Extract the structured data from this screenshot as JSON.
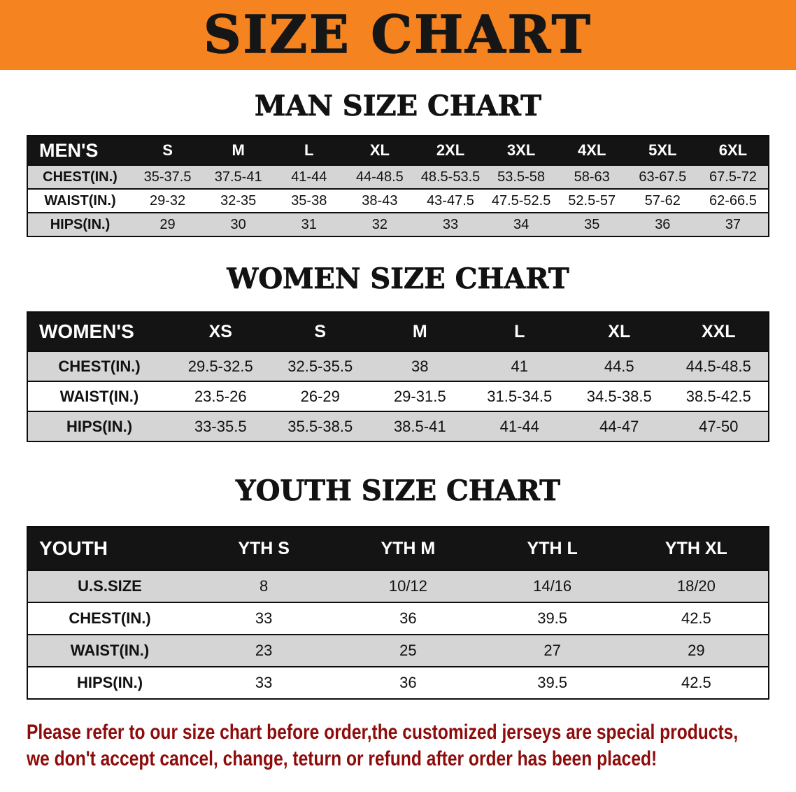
{
  "banner": {
    "title": "SIZE CHART"
  },
  "colors": {
    "banner_bg": "#f5831f",
    "header_row_bg": "#141414",
    "stripe_row_bg": "#d5d5d5",
    "border": "#0d0d0d",
    "notice_text": "#8e0b0b"
  },
  "sections": [
    {
      "heading": "MAN SIZE CHART",
      "table": {
        "header": [
          "MEN'S",
          "S",
          "M",
          "L",
          "XL",
          "2XL",
          "3XL",
          "4XL",
          "5XL",
          "6XL"
        ],
        "rows": [
          [
            "CHEST(IN.)",
            "35-37.5",
            "37.5-41",
            "41-44",
            "44-48.5",
            "48.5-53.5",
            "53.5-58",
            "58-63",
            "63-67.5",
            "67.5-72"
          ],
          [
            "WAIST(IN.)",
            "29-32",
            "32-35",
            "35-38",
            "38-43",
            "43-47.5",
            "47.5-52.5",
            "52.5-57",
            "57-62",
            "62-66.5"
          ],
          [
            "HIPS(IN.)",
            "29",
            "30",
            "31",
            "32",
            "33",
            "34",
            "35",
            "36",
            "37"
          ]
        ]
      }
    },
    {
      "heading": "WOMEN SIZE CHART",
      "table": {
        "header": [
          "WOMEN'S",
          "XS",
          "S",
          "M",
          "L",
          "XL",
          "XXL"
        ],
        "rows": [
          [
            "CHEST(IN.)",
            "29.5-32.5",
            "32.5-35.5",
            "38",
            "41",
            "44.5",
            "44.5-48.5"
          ],
          [
            "WAIST(IN.)",
            "23.5-26",
            "26-29",
            "29-31.5",
            "31.5-34.5",
            "34.5-38.5",
            "38.5-42.5"
          ],
          [
            "HIPS(IN.)",
            "33-35.5",
            "35.5-38.5",
            "38.5-41",
            "41-44",
            "44-47",
            "47-50"
          ]
        ]
      }
    },
    {
      "heading": "YOUTH SIZE CHART",
      "table": {
        "header": [
          "YOUTH",
          "YTH S",
          "YTH M",
          "YTH L",
          "YTH XL"
        ],
        "rows": [
          [
            "U.S.SIZE",
            "8",
            "10/12",
            "14/16",
            "18/20"
          ],
          [
            "CHEST(IN.)",
            "33",
            "36",
            "39.5",
            "42.5"
          ],
          [
            "WAIST(IN.)",
            "23",
            "25",
            "27",
            "29"
          ],
          [
            "HIPS(IN.)",
            "33",
            "36",
            "39.5",
            "42.5"
          ]
        ]
      }
    }
  ],
  "footer": {
    "lines": [
      "Please refer to our size chart before order,the customized jerseys are special products,",
      "we don't accept cancel, change, teturn or refund after order has been placed!"
    ]
  }
}
